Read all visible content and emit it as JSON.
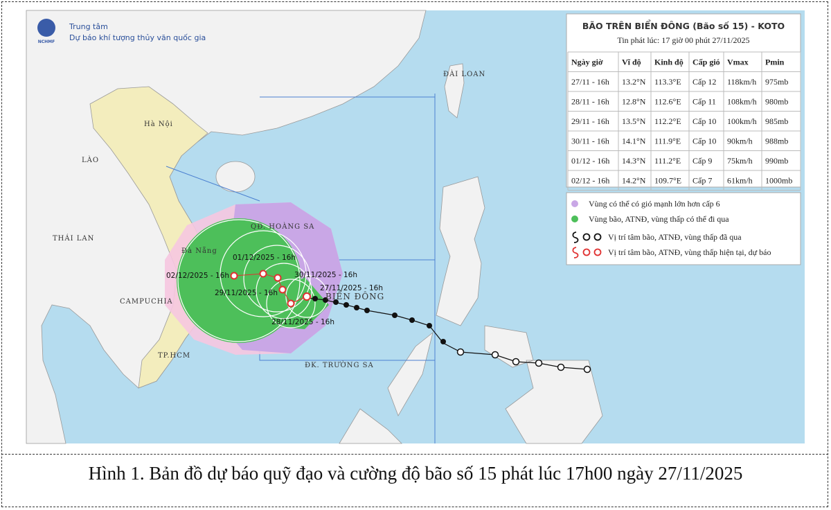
{
  "header": {
    "logo": "NCHMF",
    "org_line1": "Trung tâm",
    "org_line2": "Dự báo khí tượng thủy văn quốc gia"
  },
  "map_labels": [
    "Hà Nội",
    "LÀO",
    "THÁI LAN",
    "CAMPUCHIA",
    "Đà Nẵng",
    "TP.HCM",
    "ĐÀI LOAN",
    "QĐ. HOÀNG SA",
    "BIỂN ĐÔNG",
    "ĐK. TRƯỜNG SA"
  ],
  "track_labels": [
    "27/11/2025 - 16h",
    "28/11/2025 - 16h",
    "29/11/2025 - 16h",
    "30/11/2025 - 16h",
    "01/12/2025 - 16h",
    "02/12/2025 - 16h"
  ],
  "storm": {
    "title": "BÃO TRÊN BIỂN ĐÔNG (Bão số 15) - KOTO",
    "issued": "Tin phát lúc: 17 giờ 00 phút 27/11/2025",
    "columns": [
      "Ngày giờ",
      "Vĩ độ",
      "Kinh độ",
      "Cấp gió",
      "Vmax",
      "Pmin"
    ],
    "rows": [
      [
        "27/11 - 16h",
        "13.2°N",
        "113.3°E",
        "Cấp 12",
        "118km/h",
        "975mb"
      ],
      [
        "28/11 - 16h",
        "12.8°N",
        "112.6°E",
        "Cấp 11",
        "108km/h",
        "980mb"
      ],
      [
        "29/11 - 16h",
        "13.5°N",
        "112.2°E",
        "Cấp 10",
        "100km/h",
        "985mb"
      ],
      [
        "30/11 - 16h",
        "14.1°N",
        "111.9°E",
        "Cấp 10",
        "90km/h",
        "988mb"
      ],
      [
        "01/12 - 16h",
        "14.3°N",
        "111.2°E",
        "Cấp 9",
        "75km/h",
        "990mb"
      ],
      [
        "02/12 - 16h",
        "14.2°N",
        "109.7°E",
        "Cấp 7",
        "61km/h",
        "1000mb"
      ]
    ]
  },
  "legend": [
    "Vùng có thể có gió mạnh lớn hơn cấp 6",
    "Vùng bão, ATNĐ, vùng thấp có thể đi qua",
    "Vị trí tâm bão, ATNĐ, vùng thấp đã qua",
    "Vị trí tâm bão, ATNĐ, vùng thấp hiện tại, dự báo"
  ],
  "caption": "Hình 1. Bản đồ dự báo quỹ đạo và cường độ bão số 15 phát lúc 17h00 ngày 27/11/2025"
}
